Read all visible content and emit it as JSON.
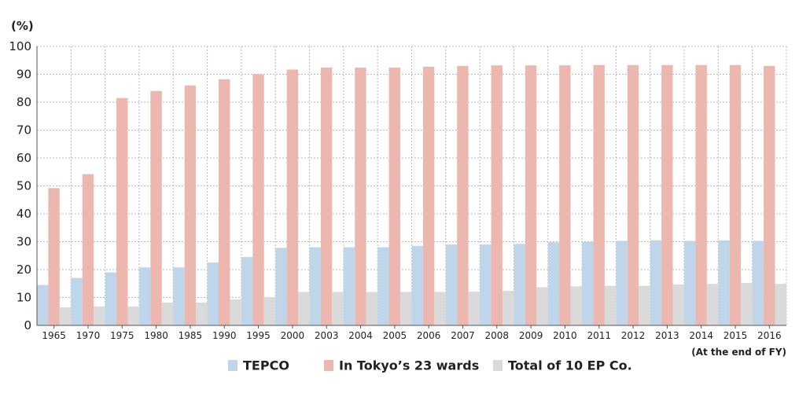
{
  "chart_data": {
    "type": "bar",
    "y_unit_label": "(%)",
    "x_note": "(At the end of FY)",
    "ylim": [
      0,
      100
    ],
    "yticks": [
      0,
      10,
      20,
      30,
      40,
      50,
      60,
      70,
      80,
      90,
      100
    ],
    "grid": true,
    "legend_position": "bottom-center",
    "categories": [
      "1965",
      "1970",
      "1975",
      "1980",
      "1985",
      "1990",
      "1995",
      "2000",
      "2003",
      "2004",
      "2005",
      "2006",
      "2007",
      "2008",
      "2009",
      "2010",
      "2011",
      "2012",
      "2013",
      "2014",
      "2015",
      "2016"
    ],
    "series": [
      {
        "name": "TEPCO",
        "color": "#bfd5ea",
        "values": [
          14.5,
          17,
          19,
          20.8,
          20.8,
          22.5,
          24.5,
          27.8,
          28,
          28,
          28,
          28.5,
          29,
          29,
          29.2,
          29.8,
          30,
          30.3,
          30.5,
          30.3,
          30.5,
          30.3
        ]
      },
      {
        "name": "In Tokyo’s 23 wards",
        "color": "#ecb7ae",
        "values": [
          49.2,
          54.2,
          81.5,
          84,
          86,
          88.2,
          90,
          91.7,
          92.4,
          92.4,
          92.4,
          92.7,
          93,
          93.2,
          93.2,
          93.2,
          93.3,
          93.3,
          93.3,
          93.3,
          93.3,
          93
        ]
      },
      {
        "name": "Total of 10 EP Co.",
        "color": "#dadada",
        "values": [
          6.5,
          6.8,
          6.8,
          8.2,
          8.2,
          9.3,
          10.1,
          12,
          12,
          12,
          12,
          12,
          12.1,
          12.4,
          13.7,
          14,
          14.2,
          14.2,
          14.7,
          14.9,
          15.2,
          14.9
        ]
      }
    ]
  }
}
